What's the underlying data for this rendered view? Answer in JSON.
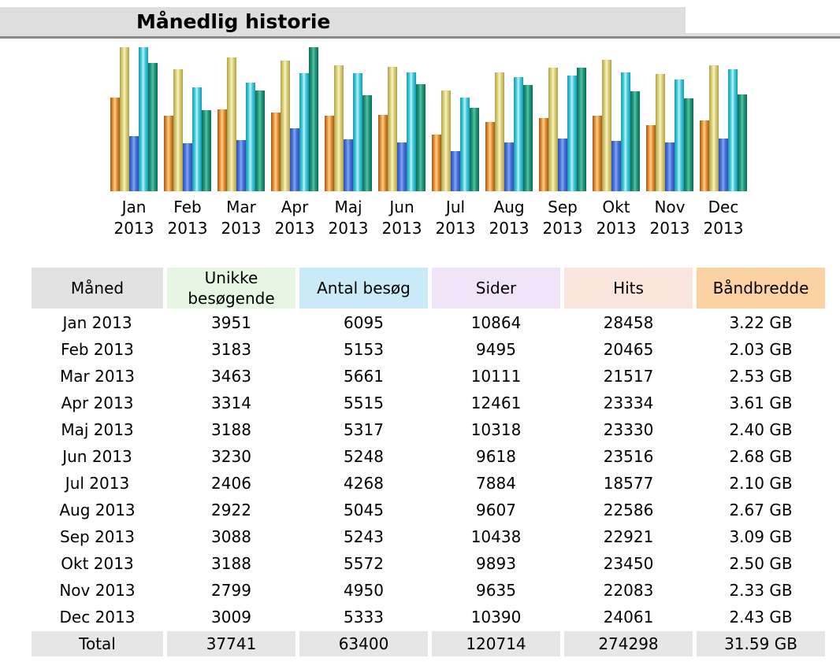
{
  "title": "Månedlig historie",
  "chart_data": {
    "type": "bar",
    "title": "Månedlig historie",
    "categories": [
      "Jan 2013",
      "Feb 2013",
      "Mar 2013",
      "Apr 2013",
      "Maj 2013",
      "Jun 2013",
      "Jul 2013",
      "Aug 2013",
      "Sep 2013",
      "Okt 2013",
      "Nov 2013",
      "Dec 2013"
    ],
    "x_tick_line1": [
      "Jan",
      "Feb",
      "Mar",
      "Apr",
      "Maj",
      "Jun",
      "Jul",
      "Aug",
      "Sep",
      "Okt",
      "Nov",
      "Dec"
    ],
    "x_tick_line2": [
      "2013",
      "2013",
      "2013",
      "2013",
      "2013",
      "2013",
      "2013",
      "2013",
      "2013",
      "2013",
      "2013",
      "2013"
    ],
    "series": [
      {
        "name": "Unikke besøgende",
        "key": "unique-visitors",
        "color": "#E8973F",
        "scale_group": "sessions",
        "values": [
          3951,
          3183,
          3463,
          3314,
          3188,
          3230,
          2406,
          2922,
          3088,
          3188,
          2799,
          3009
        ]
      },
      {
        "name": "Antal besøg",
        "key": "visits",
        "color": "#E3D98B",
        "scale_group": "sessions",
        "values": [
          6095,
          5153,
          5661,
          5515,
          5317,
          5248,
          4268,
          5045,
          5243,
          5572,
          4950,
          5333
        ]
      },
      {
        "name": "Sider",
        "key": "pages",
        "color": "#4477DD",
        "scale_group": "pageviews",
        "values": [
          10864,
          9495,
          10111,
          12461,
          10318,
          9618,
          7884,
          9607,
          10438,
          9893,
          9635,
          10390
        ]
      },
      {
        "name": "Hits",
        "key": "hits",
        "color": "#66DDEE",
        "scale_group": "pageviews",
        "values": [
          28458,
          20465,
          21517,
          23334,
          23330,
          23516,
          18577,
          22586,
          22921,
          23450,
          22083,
          24061
        ]
      },
      {
        "name": "Båndbredde",
        "key": "bandwidth",
        "color": "#2EA495",
        "scale_group": "bandwidth",
        "unit": "GB",
        "values": [
          3.22,
          2.03,
          2.53,
          3.61,
          2.4,
          2.68,
          2.1,
          2.67,
          3.09,
          2.5,
          2.33,
          2.43
        ]
      }
    ],
    "legend_position": "none",
    "grid": false,
    "scaling_note": "each scale group is normalized to its own maximum; max bar height 183px"
  },
  "table": {
    "columns": [
      {
        "label": "Måned",
        "bg": "#E2E2E2"
      },
      {
        "label": "Unikke besøgende",
        "bg": "#E6F6E2"
      },
      {
        "label": "Antal besøg",
        "bg": "#C9EBF9"
      },
      {
        "label": "Sider",
        "bg": "#F2E4F8"
      },
      {
        "label": "Hits",
        "bg": "#FCE5DD"
      },
      {
        "label": "Båndbredde",
        "bg": "#FBD2A2"
      }
    ],
    "rows": [
      [
        "Jan 2013",
        "3951",
        "6095",
        "10864",
        "28458",
        "3.22 GB"
      ],
      [
        "Feb 2013",
        "3183",
        "5153",
        "9495",
        "20465",
        "2.03 GB"
      ],
      [
        "Mar 2013",
        "3463",
        "5661",
        "10111",
        "21517",
        "2.53 GB"
      ],
      [
        "Apr 2013",
        "3314",
        "5515",
        "12461",
        "23334",
        "3.61 GB"
      ],
      [
        "Maj 2013",
        "3188",
        "5317",
        "10318",
        "23330",
        "2.40 GB"
      ],
      [
        "Jun 2013",
        "3230",
        "5248",
        "9618",
        "23516",
        "2.68 GB"
      ],
      [
        "Jul 2013",
        "2406",
        "4268",
        "7884",
        "18577",
        "2.10 GB"
      ],
      [
        "Aug 2013",
        "2922",
        "5045",
        "9607",
        "22586",
        "2.67 GB"
      ],
      [
        "Sep 2013",
        "3088",
        "5243",
        "10438",
        "22921",
        "3.09 GB"
      ],
      [
        "Okt 2013",
        "3188",
        "5572",
        "9893",
        "23450",
        "2.50 GB"
      ],
      [
        "Nov 2013",
        "2799",
        "4950",
        "9635",
        "22083",
        "2.33 GB"
      ],
      [
        "Dec 2013",
        "3009",
        "5333",
        "10390",
        "24061",
        "2.43 GB"
      ]
    ],
    "total": [
      "Total",
      "37741",
      "63400",
      "120714",
      "274298",
      "31.59 GB"
    ]
  }
}
